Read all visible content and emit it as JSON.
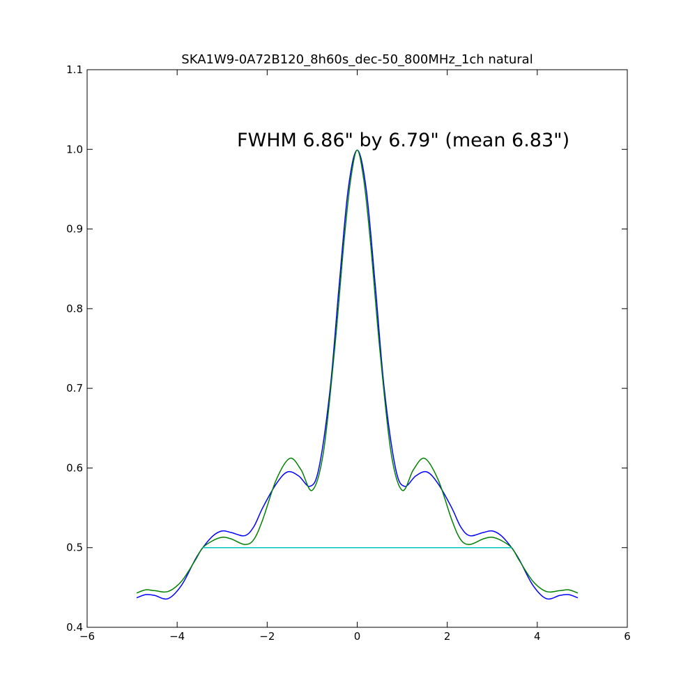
{
  "chart_data": {
    "type": "line",
    "title": "SKA1W9-0A72B120_8h60s_dec-50_800MHz_1ch natural",
    "annotation": "FWHM 6.86\" by 6.79\" (mean 6.83\")",
    "xlabel": "",
    "ylabel": "",
    "xlim": [
      -6,
      6
    ],
    "ylim": [
      0.4,
      1.1
    ],
    "xticks": [
      "−6",
      "−4",
      "−2",
      "0",
      "2",
      "4",
      "6"
    ],
    "xtick_values": [
      -6,
      -4,
      -2,
      0,
      2,
      4,
      6
    ],
    "yticks": [
      "0.4",
      "0.5",
      "0.6",
      "0.7",
      "0.8",
      "0.9",
      "1.0",
      "1.1"
    ],
    "ytick_values": [
      0.4,
      0.5,
      0.6,
      0.7,
      0.8,
      0.9,
      1.0,
      1.1
    ],
    "grid": false,
    "legend": "none",
    "series": [
      {
        "color": "#0000ff",
        "x": [
          -4.9,
          -4.7,
          -4.5,
          -4.2,
          -3.9,
          -3.6,
          -3.43,
          -3.2,
          -3.0,
          -2.8,
          -2.5,
          -2.3,
          -2.1,
          -1.8,
          -1.55,
          -1.3,
          -1.05,
          -0.85,
          -0.6,
          -0.4,
          -0.2,
          0,
          0.2,
          0.4,
          0.6,
          0.85,
          1.05,
          1.3,
          1.55,
          1.8,
          2.1,
          2.3,
          2.5,
          2.8,
          3.0,
          3.2,
          3.43,
          3.6,
          3.9,
          4.2,
          4.5,
          4.7,
          4.9
        ],
        "y": [
          0.437,
          0.441,
          0.44,
          0.436,
          0.453,
          0.485,
          0.5,
          0.515,
          0.521,
          0.519,
          0.515,
          0.526,
          0.55,
          0.58,
          0.595,
          0.59,
          0.577,
          0.6,
          0.7,
          0.83,
          0.95,
          0.999,
          0.95,
          0.83,
          0.7,
          0.6,
          0.577,
          0.59,
          0.595,
          0.58,
          0.55,
          0.526,
          0.515,
          0.519,
          0.521,
          0.515,
          0.5,
          0.485,
          0.453,
          0.436,
          0.44,
          0.441,
          0.437
        ]
      },
      {
        "color": "#008000",
        "x": [
          -4.9,
          -4.7,
          -4.5,
          -4.2,
          -3.9,
          -3.6,
          -3.43,
          -3.2,
          -3.0,
          -2.8,
          -2.5,
          -2.3,
          -2.1,
          -1.8,
          -1.5,
          -1.25,
          -1.0,
          -0.75,
          -0.5,
          -0.3,
          -0.15,
          0,
          0.15,
          0.3,
          0.5,
          0.75,
          1.0,
          1.25,
          1.5,
          1.8,
          2.1,
          2.3,
          2.5,
          2.8,
          3.0,
          3.2,
          3.43,
          3.6,
          3.9,
          4.2,
          4.5,
          4.7,
          4.9
        ],
        "y": [
          0.443,
          0.447,
          0.446,
          0.445,
          0.458,
          0.484,
          0.5,
          0.509,
          0.513,
          0.511,
          0.504,
          0.51,
          0.535,
          0.585,
          0.612,
          0.598,
          0.572,
          0.62,
          0.75,
          0.88,
          0.96,
          0.999,
          0.96,
          0.88,
          0.75,
          0.62,
          0.572,
          0.598,
          0.612,
          0.585,
          0.535,
          0.51,
          0.504,
          0.511,
          0.513,
          0.509,
          0.5,
          0.484,
          0.458,
          0.445,
          0.446,
          0.447,
          0.443
        ]
      },
      {
        "color": "#00bfbf",
        "x": [
          -3.43,
          3.43
        ],
        "y": [
          0.5,
          0.5
        ]
      }
    ]
  }
}
